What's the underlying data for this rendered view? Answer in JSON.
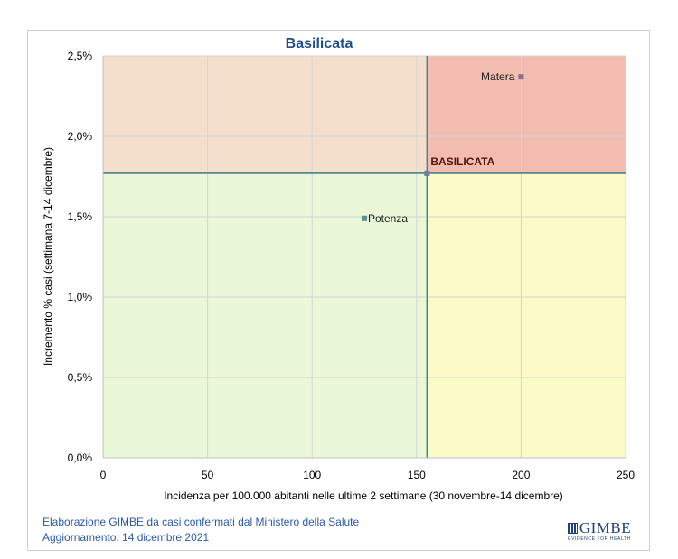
{
  "chart_data": {
    "type": "scatter",
    "title": "Basilicata",
    "xlabel": "Incidenza per 100.000 abitanti nelle ultime 2 settimane (30 novembre-14 dicembre)",
    "ylabel": "Incremento % casi (settimana 7-14 dicembre)",
    "xlim": [
      0,
      250
    ],
    "ylim": [
      0,
      2.5
    ],
    "x_ticks": [
      "0",
      "50",
      "100",
      "150",
      "200",
      "250"
    ],
    "y_ticks": [
      "0,0%",
      "0,5%",
      "1,0%",
      "1,5%",
      "2,0%",
      "2,5%"
    ],
    "grid": true,
    "reference": {
      "label": "BASILICATA",
      "x": 155,
      "y": 1.77
    },
    "points": [
      {
        "label": "Matera",
        "x": 200,
        "y": 2.37
      },
      {
        "label": "Potenza",
        "x": 125,
        "y": 1.49
      }
    ],
    "quadrant_colors": {
      "top_left": "#f4dfcc",
      "top_right": "#f2bcb0",
      "bottom_left": "#eaf8d7",
      "bottom_right": "#fbfbc8"
    },
    "point_colors": {
      "Matera": "#8a7090",
      "Potenza": "#5e8f96",
      "reference": "#6f7d9a"
    },
    "line_color": "#4e8090"
  },
  "footer": {
    "line1": "Elaborazione GIMBE da casi confermati dal Ministero della Salute",
    "line2": "Aggiornamento: 14 dicembre 2021"
  },
  "logo": {
    "brand": "GIMBE",
    "tagline": "EVIDENCE FOR HEALTH"
  }
}
